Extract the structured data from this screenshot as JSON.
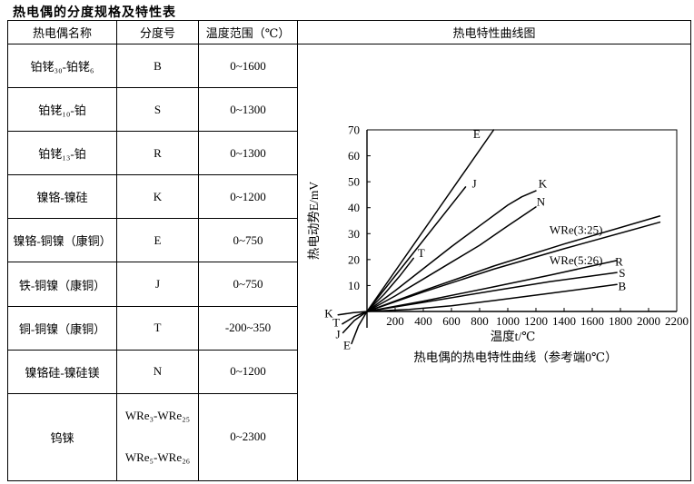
{
  "page_title": "热电偶的分度规格及特性表",
  "table": {
    "headers": [
      "热电偶名称",
      "分度号",
      "温度范围（℃）",
      "热电特性曲线图"
    ],
    "rows": [
      {
        "name": "铂铑₃₀-铂铑₆",
        "code": "B",
        "range": "0~1600"
      },
      {
        "name": "铂铑₁₀-铂",
        "code": "S",
        "range": "0~1300"
      },
      {
        "name": "铂铑₁₃-铂",
        "code": "R",
        "range": "0~1300"
      },
      {
        "name": "镍铬-镍硅",
        "code": "K",
        "range": "0~1200"
      },
      {
        "name": "镍铬-铜镍（康铜）",
        "code": "E",
        "range": "0~750"
      },
      {
        "name": "铁-铜镍（康铜）",
        "code": "J",
        "range": "0~750"
      },
      {
        "name": "铜-铜镍（康铜）",
        "code": "T",
        "range": "-200~350"
      },
      {
        "name": "镍铬硅-镍硅镁",
        "code": "N",
        "range": "0~1200"
      },
      {
        "name": "钨铼",
        "code": "WRe₃-WRe₂₅",
        "code2": "WRe₅-WRe₂₆",
        "range": "0~2300"
      }
    ]
  },
  "chart_data": {
    "type": "line",
    "title": "热电偶的热电特性曲线（参考端0℃）",
    "xlabel": "温度t/℃",
    "ylabel": "热电动势E/mV",
    "xlim": [
      0,
      2200
    ],
    "ylim": [
      0,
      70
    ],
    "xticks": [
      200,
      400,
      600,
      800,
      1000,
      1200,
      1400,
      1600,
      1800,
      2000,
      2200
    ],
    "yticks": [
      10,
      20,
      30,
      40,
      50,
      60,
      70
    ],
    "grid": false,
    "line_color": "#000000",
    "series": [
      {
        "name": "E",
        "label": "E",
        "label_pos": [
          780,
          68.5
        ],
        "points": [
          [
            -110,
            -12.4
          ],
          [
            -60,
            -5.5
          ],
          [
            0,
            0
          ],
          [
            450,
            35
          ],
          [
            900,
            70
          ]
        ]
      },
      {
        "name": "J",
        "label": "J",
        "label_pos": [
          762,
          49.4
        ],
        "points": [
          [
            -170,
            -8.2
          ],
          [
            -90,
            -3.5
          ],
          [
            0,
            0
          ],
          [
            350,
            24
          ],
          [
            700,
            48
          ]
        ]
      },
      {
        "name": "K",
        "label": "K",
        "label_pos": [
          1248,
          49.4
        ],
        "points": [
          [
            -205,
            -1.3
          ],
          [
            -100,
            -0.5
          ],
          [
            0,
            0
          ],
          [
            200,
            8
          ],
          [
            400,
            16.5
          ],
          [
            600,
            25
          ],
          [
            800,
            33
          ],
          [
            1000,
            41
          ],
          [
            1100,
            44.2
          ],
          [
            1200,
            46.5
          ]
        ]
      },
      {
        "name": "N",
        "label": "N",
        "label_pos": [
          1235,
          42.4
        ],
        "points": [
          [
            0,
            0
          ],
          [
            200,
            6
          ],
          [
            400,
            12.5
          ],
          [
            600,
            19
          ],
          [
            800,
            25.5
          ],
          [
            1000,
            33
          ],
          [
            1200,
            40.3
          ]
        ]
      },
      {
        "name": "T",
        "label": "T",
        "label_pos": [
          385,
          22.5
        ],
        "points": [
          [
            -175,
            -4.8
          ],
          [
            -90,
            -2
          ],
          [
            0,
            0
          ],
          [
            120,
            6.5
          ],
          [
            230,
            13.5
          ],
          [
            330,
            20.5
          ]
        ]
      },
      {
        "name": "WRe(3:25)",
        "label": "WRe(3:25)",
        "label_pos": [
          1485,
          31.5
        ],
        "points": [
          [
            0,
            0
          ],
          [
            400,
            8
          ],
          [
            900,
            17.5
          ],
          [
            1400,
            26
          ],
          [
            2080,
            36.8
          ]
        ]
      },
      {
        "name": "WRe(5:26)",
        "label": "WRe(5:26)",
        "label_pos": [
          1485,
          19.8
        ],
        "points": [
          [
            0,
            0
          ],
          [
            400,
            7.5
          ],
          [
            900,
            16.3
          ],
          [
            1400,
            24.2
          ],
          [
            2080,
            34.4
          ]
        ]
      },
      {
        "name": "R",
        "label": "R",
        "label_pos": [
          1790,
          19.2
        ],
        "points": [
          [
            0,
            0
          ],
          [
            400,
            4
          ],
          [
            900,
            9.5
          ],
          [
            1300,
            14
          ],
          [
            1770,
            19.6
          ]
        ]
      },
      {
        "name": "S",
        "label": "S",
        "label_pos": [
          1812,
          14.8
        ],
        "points": [
          [
            0,
            0
          ],
          [
            400,
            3.5
          ],
          [
            900,
            8
          ],
          [
            1300,
            11.5
          ],
          [
            1775,
            15
          ]
        ]
      },
      {
        "name": "B",
        "label": "B",
        "label_pos": [
          1812,
          9.8
        ],
        "points": [
          [
            0,
            0
          ],
          [
            300,
            0.8
          ],
          [
            600,
            2.2
          ],
          [
            900,
            4.2
          ],
          [
            1300,
            7
          ],
          [
            1775,
            10.4
          ]
        ]
      }
    ],
    "negative_labels": [
      {
        "text": "K",
        "pos": [
          -271,
          -0.7
        ]
      },
      {
        "text": "T",
        "pos": [
          -219,
          -4.2
        ]
      },
      {
        "text": "J",
        "pos": [
          -206,
          -8.8
        ]
      },
      {
        "text": "E",
        "pos": [
          -142,
          -13.0
        ]
      }
    ]
  }
}
